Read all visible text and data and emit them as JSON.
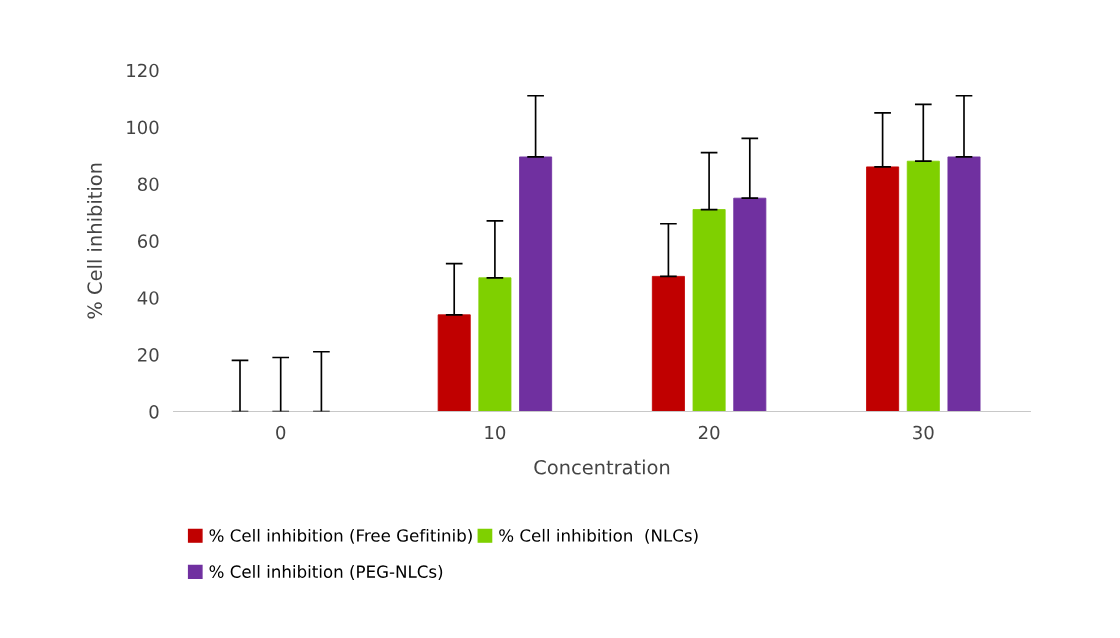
{
  "chart_data": {
    "type": "bar",
    "xlabel": "Concentration",
    "ylabel": "% Cell inhibition",
    "categories": [
      "0",
      "10",
      "20",
      "30"
    ],
    "series": [
      {
        "name": "% Cell inhibition (Free Gefitinib)",
        "color": "#c00000",
        "values": [
          0,
          34,
          47.5,
          86
        ],
        "errors": [
          [
            0,
            18
          ],
          [
            34,
            52
          ],
          [
            47.5,
            66
          ],
          [
            86,
            105
          ]
        ]
      },
      {
        "name": "% Cell inhibition  (NLCs)",
        "color": "#7fd000",
        "values": [
          0,
          47,
          71,
          88
        ],
        "errors": [
          [
            0,
            19
          ],
          [
            47,
            67
          ],
          [
            71,
            91
          ],
          [
            88,
            108
          ]
        ]
      },
      {
        "name": "% Cell inhibition (PEG-NLCs)",
        "color": "#7030a0",
        "values": [
          0,
          89.5,
          75,
          89.5
        ],
        "errors": [
          [
            0,
            21
          ],
          [
            89.5,
            111
          ],
          [
            75,
            96
          ],
          [
            89.5,
            111
          ]
        ]
      }
    ],
    "ylim": [
      0,
      120
    ],
    "yticks": [
      0,
      20,
      40,
      60,
      80,
      100,
      120
    ],
    "grid": false,
    "legend": "bottom"
  }
}
